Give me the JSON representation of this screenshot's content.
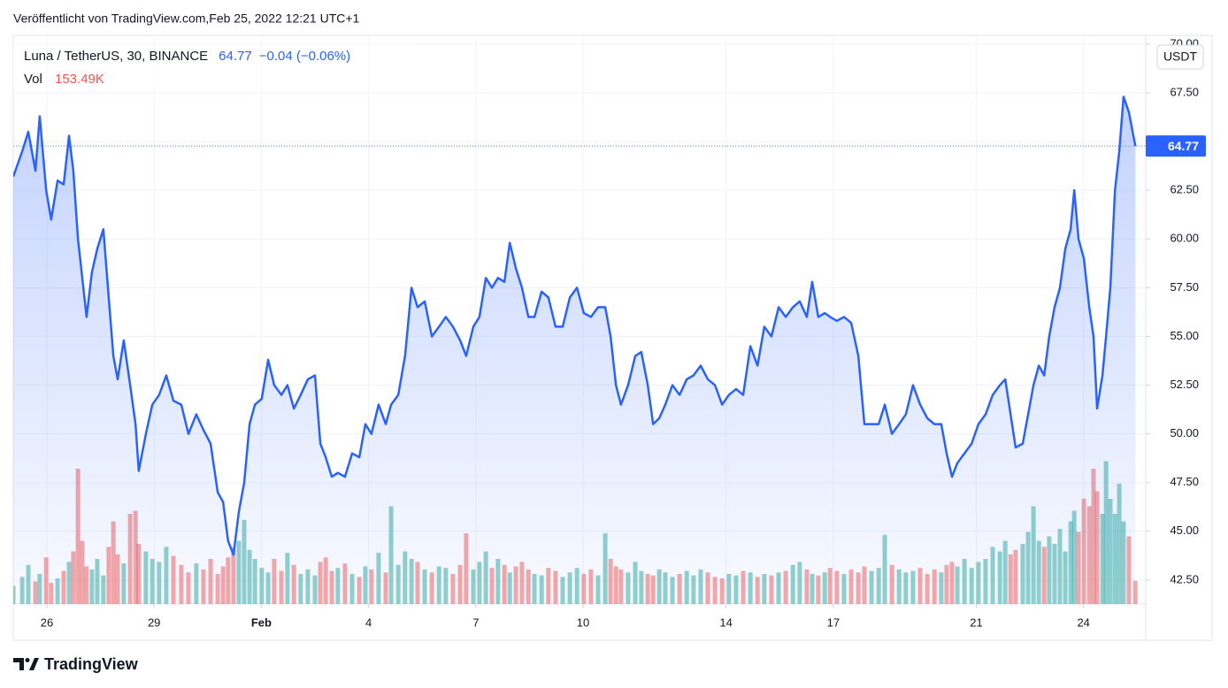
{
  "header": "Veröffentlicht von TradingView.com,Feb 25, 2022 12:21 UTC+1",
  "footer": "TradingView",
  "chart_data": {
    "type": "area",
    "symbol": "Luna / TetherUS, 30, BINANCE",
    "last": 64.77,
    "change": "−0.04 (−0.06%)",
    "volume_title": "Vol",
    "volume_label": "153.49K",
    "currency": "USDT",
    "color": "#2962ff",
    "volume_colors": {
      "up": "#26a69a",
      "down": "#ef5350"
    },
    "grid": true,
    "xlim": [
      25.06,
      56.74
    ],
    "xticks": [
      {
        "value": 26,
        "label": "26"
      },
      {
        "value": 29,
        "label": "29"
      },
      {
        "value": 32,
        "label": "Feb"
      },
      {
        "value": 35,
        "label": "4"
      },
      {
        "value": 38,
        "label": "7"
      },
      {
        "value": 41,
        "label": "10"
      },
      {
        "value": 45,
        "label": "14"
      },
      {
        "value": 48,
        "label": "17"
      },
      {
        "value": 52,
        "label": "21"
      },
      {
        "value": 55,
        "label": "24"
      }
    ],
    "ylim": [
      41.27,
      70.45
    ],
    "yticks": [
      {
        "value": 42.5,
        "label": "42.50"
      },
      {
        "value": 45,
        "label": "45.00"
      },
      {
        "value": 47.5,
        "label": "47.50"
      },
      {
        "value": 50,
        "label": "50.00"
      },
      {
        "value": 52.5,
        "label": "52.50"
      },
      {
        "value": 55,
        "label": "55.00"
      },
      {
        "value": 57.5,
        "label": "57.50"
      },
      {
        "value": 60,
        "label": "60.00"
      },
      {
        "value": 62.5,
        "label": "62.50"
      },
      {
        "value": 65,
        "label": "65.00"
      },
      {
        "value": 67.5,
        "label": "67.50"
      },
      {
        "value": 70,
        "label": "70.00"
      }
    ],
    "volume_ylim": [
      0,
      1000000
    ],
    "x": [
      25.06,
      25.31,
      25.48,
      25.68,
      25.8,
      25.98,
      26.12,
      26.3,
      26.47,
      26.62,
      26.74,
      26.87,
      26.99,
      27.11,
      27.26,
      27.41,
      27.58,
      27.73,
      27.86,
      27.98,
      28.15,
      28.33,
      28.48,
      28.57,
      28.77,
      28.95,
      29.14,
      29.34,
      29.54,
      29.76,
      29.96,
      30.18,
      30.38,
      30.58,
      30.78,
      30.93,
      31.07,
      31.22,
      31.37,
      31.52,
      31.67,
      31.82,
      32.01,
      32.19,
      32.36,
      32.56,
      32.73,
      32.91,
      33.1,
      33.3,
      33.5,
      33.65,
      33.8,
      33.97,
      34.14,
      34.34,
      34.54,
      34.74,
      34.91,
      35.08,
      35.28,
      35.48,
      35.63,
      35.83,
      36.02,
      36.2,
      36.37,
      36.57,
      36.77,
      36.97,
      37.16,
      37.36,
      37.56,
      37.73,
      37.93,
      38.1,
      38.28,
      38.45,
      38.62,
      38.8,
      38.95,
      39.12,
      39.29,
      39.47,
      39.64,
      39.84,
      40.03,
      40.23,
      40.43,
      40.63,
      40.83,
      41.02,
      41.22,
      41.42,
      41.62,
      41.77,
      41.92,
      42.06,
      42.26,
      42.46,
      42.63,
      42.81,
      42.96,
      43.13,
      43.3,
      43.5,
      43.7,
      43.9,
      44.09,
      44.29,
      44.49,
      44.69,
      44.89,
      45.08,
      45.28,
      45.48,
      45.68,
      45.88,
      46.07,
      46.27,
      46.47,
      46.67,
      46.87,
      47.06,
      47.26,
      47.41,
      47.58,
      47.76,
      47.91,
      48.1,
      48.3,
      48.5,
      48.7,
      48.87,
      49.07,
      49.27,
      49.44,
      49.64,
      49.84,
      50.03,
      50.23,
      50.43,
      50.63,
      50.83,
      51.02,
      51.17,
      51.32,
      51.47,
      51.67,
      51.87,
      52.06,
      52.26,
      52.46,
      52.66,
      52.81,
      52.96,
      53.1,
      53.3,
      53.45,
      53.6,
      53.75,
      53.9,
      54.04,
      54.19,
      54.34,
      54.49,
      54.64,
      54.74,
      54.86,
      55.01,
      55.16,
      55.28,
      55.38,
      55.53,
      55.63,
      55.75,
      55.88,
      56.0,
      56.12,
      56.27,
      56.45
    ],
    "values": [
      63.2,
      64.5,
      65.5,
      63.5,
      66.3,
      62.5,
      61.0,
      63.0,
      62.8,
      65.3,
      63.5,
      60.0,
      58.0,
      56.0,
      58.3,
      59.5,
      60.5,
      57.0,
      54.0,
      52.8,
      54.8,
      52.5,
      50.5,
      48.1,
      50.0,
      51.5,
      52.0,
      53.0,
      51.7,
      51.5,
      50.0,
      51.0,
      50.2,
      49.5,
      47.0,
      46.5,
      44.5,
      43.8,
      46.0,
      47.5,
      50.5,
      51.5,
      51.8,
      53.8,
      52.5,
      52.0,
      52.5,
      51.3,
      52.0,
      52.8,
      53.0,
      49.5,
      48.8,
      47.8,
      48.0,
      47.8,
      49.0,
      48.8,
      50.5,
      50.0,
      51.5,
      50.5,
      51.5,
      52.0,
      54.0,
      57.5,
      56.5,
      56.8,
      55.0,
      55.5,
      56.0,
      55.5,
      54.8,
      54.0,
      55.5,
      56.0,
      58.0,
      57.5,
      58.0,
      57.8,
      59.8,
      58.5,
      57.5,
      56.0,
      56.0,
      57.3,
      57.0,
      55.5,
      55.5,
      57.0,
      57.5,
      56.2,
      56.0,
      56.5,
      56.5,
      55.0,
      52.5,
      51.5,
      52.5,
      54.0,
      54.2,
      52.5,
      50.5,
      50.8,
      51.5,
      52.5,
      52.0,
      52.8,
      53.0,
      53.5,
      52.8,
      52.5,
      51.5,
      52.0,
      52.3,
      52.0,
      54.5,
      53.5,
      55.5,
      55.0,
      56.5,
      56.0,
      56.5,
      56.8,
      56.0,
      57.8,
      56.0,
      56.2,
      56.0,
      55.8,
      56.0,
      55.7,
      54.0,
      50.5,
      50.5,
      50.5,
      51.5,
      50.0,
      50.5,
      51.0,
      52.5,
      51.5,
      50.8,
      50.5,
      50.5,
      49.0,
      47.8,
      48.5,
      49.0,
      49.5,
      50.5,
      51.0,
      52.0,
      52.5,
      52.8,
      51.0,
      49.3,
      49.5,
      51.0,
      52.5,
      53.5,
      53.0,
      55.0,
      56.5,
      57.5,
      59.5,
      60.5,
      62.5,
      60.0,
      59.0,
      56.5,
      55.0,
      51.3,
      53.0,
      55.0,
      57.5,
      62.5,
      64.5,
      67.3,
      66.5,
      64.77
    ],
    "volume": [
      120000,
      180000,
      260000,
      150000,
      200000,
      310000,
      140000,
      170000,
      220000,
      280000,
      350000,
      900000,
      420000,
      250000,
      230000,
      300000,
      190000,
      380000,
      550000,
      330000,
      270000,
      600000,
      620000,
      400000,
      350000,
      300000,
      280000,
      380000,
      320000,
      260000,
      210000,
      270000,
      230000,
      300000,
      200000,
      250000,
      310000,
      380000,
      420000,
      560000,
      360000,
      300000,
      240000,
      210000,
      300000,
      220000,
      340000,
      260000,
      200000,
      230000,
      190000,
      280000,
      310000,
      220000,
      240000,
      270000,
      200000,
      180000,
      250000,
      230000,
      340000,
      210000,
      650000,
      260000,
      350000,
      300000,
      280000,
      230000,
      210000,
      250000,
      240000,
      200000,
      260000,
      470000,
      230000,
      280000,
      350000,
      240000,
      300000,
      260000,
      210000,
      250000,
      280000,
      230000,
      200000,
      190000,
      240000,
      220000,
      180000,
      210000,
      240000,
      200000,
      230000,
      190000,
      470000,
      300000,
      250000,
      230000,
      210000,
      280000,
      220000,
      200000,
      190000,
      230000,
      210000,
      180000,
      200000,
      220000,
      190000,
      230000,
      210000,
      180000,
      170000,
      200000,
      190000,
      220000,
      210000,
      180000,
      200000,
      190000,
      210000,
      220000,
      260000,
      280000,
      230000,
      200000,
      190000,
      210000,
      240000,
      220000,
      200000,
      230000,
      210000,
      250000,
      220000,
      240000,
      460000,
      260000,
      230000,
      210000,
      220000,
      240000,
      200000,
      230000,
      210000,
      260000,
      280000,
      250000,
      300000,
      240000,
      280000,
      300000,
      380000,
      350000,
      420000,
      330000,
      360000,
      400000,
      480000,
      650000,
      420000,
      380000,
      450000,
      400000,
      500000,
      350000,
      550000,
      620000,
      480000,
      700000,
      650000,
      900000,
      750000,
      600000,
      950000,
      700000,
      600000,
      800000,
      550000,
      450000,
      153490
    ]
  }
}
